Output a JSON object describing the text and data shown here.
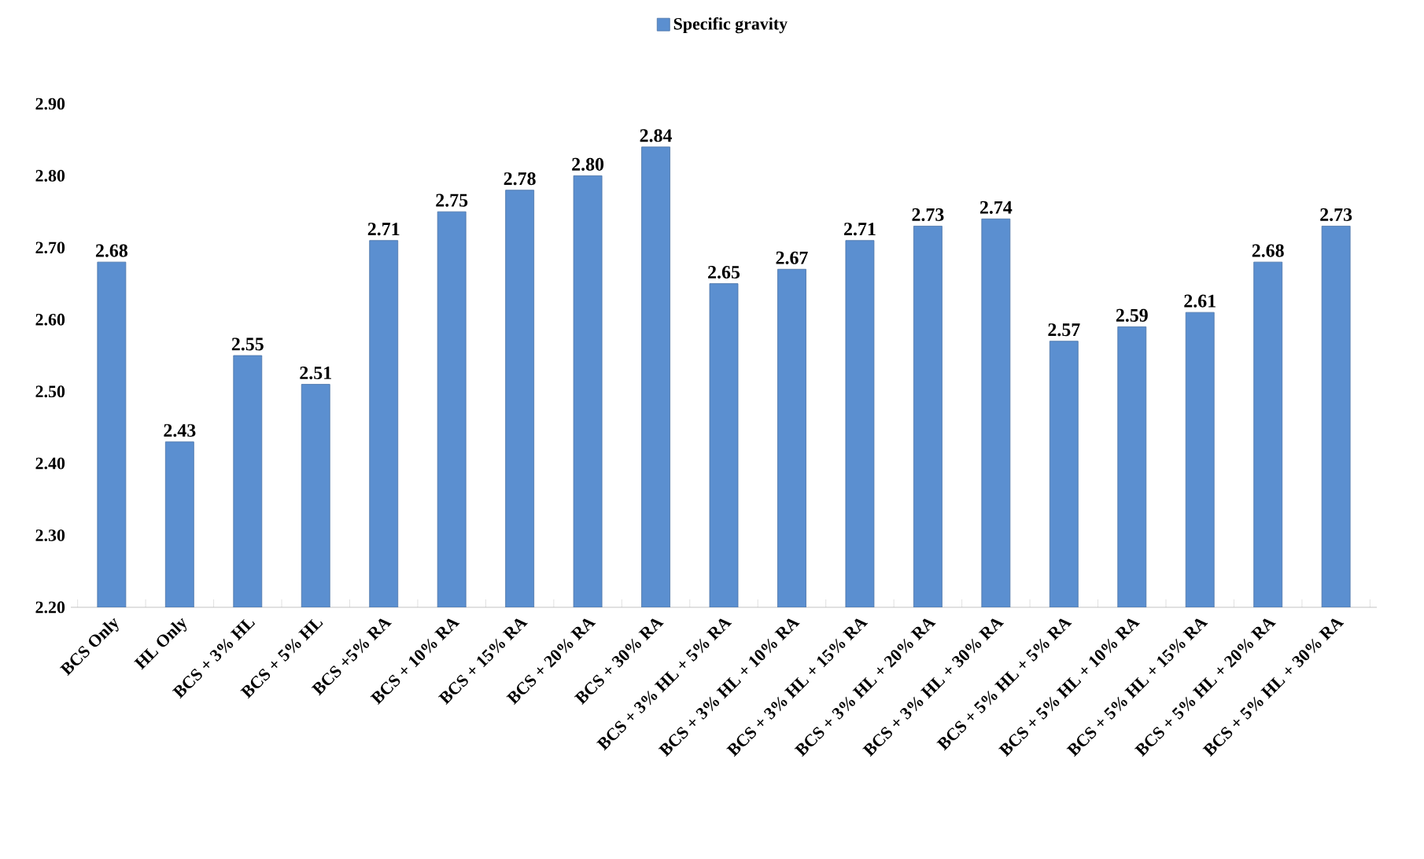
{
  "chart_data": {
    "type": "bar",
    "legend": "top",
    "data_labels": true,
    "categories": [
      "BCS Only",
      "HL Only",
      "BCS + 3% HL",
      "BCS + 5% HL",
      "BCS +5% RA",
      "BCS + 10% RA",
      "BCS + 15% RA",
      "BCS + 20% RA",
      "BCS + 30% RA",
      "BCS + 3% HL + 5% RA",
      "BCS + 3% HL + 10% RA",
      "BCS + 3% HL + 15% RA",
      "BCS + 3% HL + 20% RA",
      "BCS + 3% HL + 30% RA",
      "BCS + 5% HL + 5% RA",
      "BCS + 5% HL + 10% RA",
      "BCS + 5% HL + 15% RA",
      "BCS + 5% HL + 20% RA",
      "BCS + 5% HL + 30% RA"
    ],
    "series": [
      {
        "name": "Specific gravity",
        "color": "#5b8fd0",
        "values": [
          2.68,
          2.43,
          2.55,
          2.51,
          2.71,
          2.75,
          2.78,
          2.8,
          2.84,
          2.65,
          2.67,
          2.71,
          2.73,
          2.74,
          2.57,
          2.59,
          2.61,
          2.68,
          2.73
        ],
        "value_labels": [
          "2.68",
          "2.43",
          "2.55",
          "2.51",
          "2.71",
          "2.75",
          "2.78",
          "2.80",
          "2.84",
          "2.65",
          "2.67",
          "2.71",
          "2.73",
          "2.74",
          "2.57",
          "2.59",
          "2.61",
          "2.68",
          "2.73"
        ]
      }
    ],
    "ylim": [
      2.2,
      2.9
    ],
    "yticks": [
      {
        "value": 2.2,
        "label": "2.20"
      },
      {
        "value": 2.3,
        "label": "2.30"
      },
      {
        "value": 2.4,
        "label": "2.40"
      },
      {
        "value": 2.5,
        "label": "2.50"
      },
      {
        "value": 2.6,
        "label": "2.60"
      },
      {
        "value": 2.7,
        "label": "2.70"
      },
      {
        "value": 2.8,
        "label": "2.80"
      },
      {
        "value": 2.9,
        "label": "2.90"
      }
    ]
  }
}
